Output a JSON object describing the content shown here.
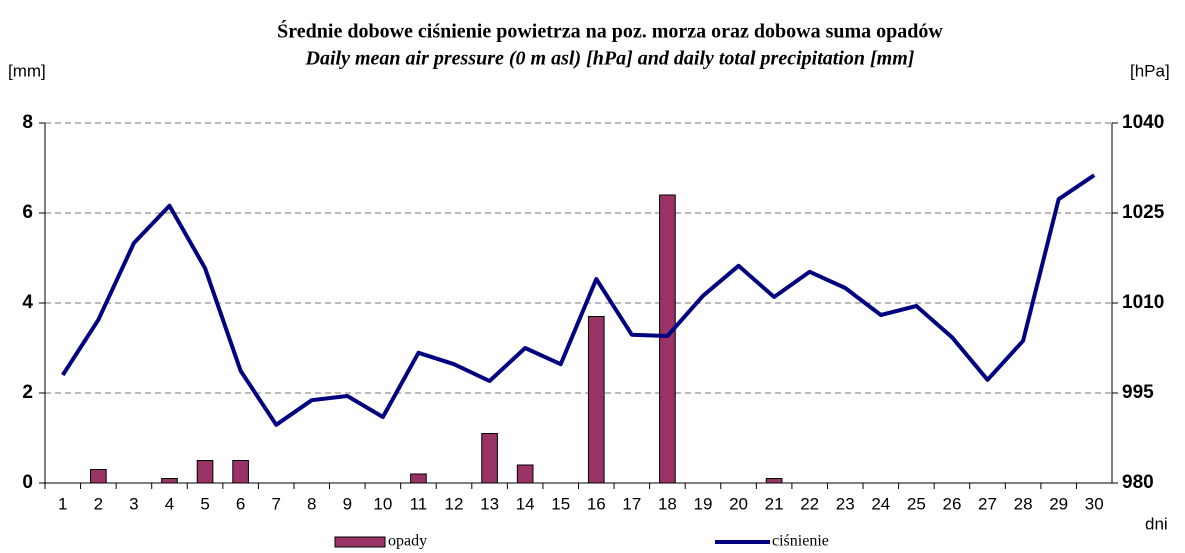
{
  "chart_data": {
    "type": "combo",
    "title": "Średnie dobowe ciśnienie powietrza na poz. morza oraz dobowa suma opadów",
    "subtitle": "Daily mean air pressure (0 m asl) [hPa] and daily total precipitation [mm]",
    "y_label": "[mm]",
    "y2_label": "[hPa]",
    "x_label": "dni",
    "categories": [
      "1",
      "2",
      "3",
      "4",
      "5",
      "6",
      "7",
      "8",
      "9",
      "10",
      "11",
      "12",
      "13",
      "14",
      "15",
      "16",
      "17",
      "18",
      "19",
      "20",
      "21",
      "22",
      "23",
      "24",
      "25",
      "26",
      "27",
      "28",
      "29",
      "30"
    ],
    "series": [
      {
        "name": "opady",
        "type": "bar",
        "color": "#993366",
        "axis": "y",
        "values": [
          0,
          0.3,
          0,
          0.1,
          0.5,
          0.5,
          0,
          0,
          0,
          0,
          0.2,
          0,
          1.1,
          0.4,
          0,
          3.7,
          0,
          6.4,
          0,
          0,
          0.1,
          0,
          0,
          0,
          0,
          0,
          0,
          0,
          0,
          0
        ]
      },
      {
        "name": "ciśnienie",
        "type": "line",
        "color": "#000080",
        "axis": "y2",
        "values": [
          998,
          1007.2,
          1020,
          1026.2,
          1015.8,
          998.7,
          989.7,
          993.8,
          994.5,
          991,
          1001.7,
          999.8,
          997,
          1002.5,
          999.8,
          1014,
          1004.7,
          1004.5,
          1011.2,
          1016.2,
          1011,
          1015.2,
          1012.5,
          1008,
          1009.5,
          1004.3,
          997.2,
          1003.7,
          1027.3,
          1031.3
        ]
      }
    ],
    "ylim": [
      0,
      8
    ],
    "yticks": [
      0,
      2,
      4,
      6,
      8
    ],
    "y2lim": [
      980,
      1040
    ],
    "y2ticks": [
      980,
      995,
      1010,
      1025,
      1040
    ],
    "grid": true,
    "legend": "bottom"
  }
}
